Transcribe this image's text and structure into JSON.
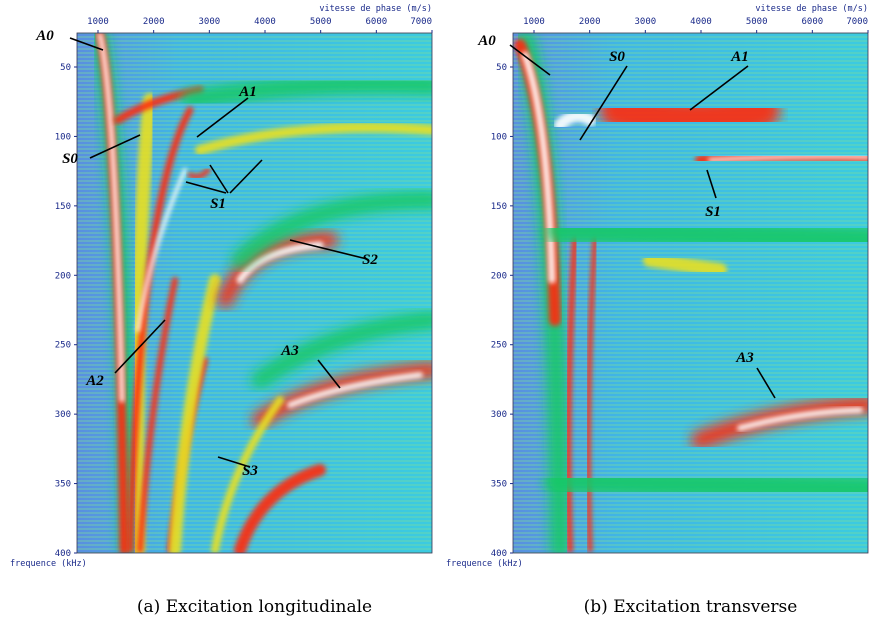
{
  "panels": [
    {
      "x_axis_label": "vitesse de phase (m/s)",
      "y_axis_label": "frequence (kHz)",
      "x_ticks": [
        1000,
        2000,
        3000,
        4000,
        5000,
        6000,
        7000
      ],
      "y_ticks": [
        50,
        100,
        150,
        200,
        250,
        300,
        350,
        400
      ],
      "annotations": [
        "A0",
        "A1",
        "S0",
        "S1",
        "S2",
        "A2",
        "A3",
        "S3"
      ],
      "caption": "(a) Excitation longitudinale"
    },
    {
      "x_axis_label": "vitesse de phase (m/s)",
      "y_axis_label": "frequence (kHz)",
      "x_ticks": [
        1000,
        2000,
        3000,
        4000,
        5000,
        6000,
        7000
      ],
      "y_ticks": [
        50,
        100,
        150,
        200,
        250,
        300,
        350,
        400
      ],
      "annotations": [
        "A0",
        "S0",
        "A1",
        "S1",
        "A3"
      ],
      "caption": "(b) Excitation transverse"
    }
  ]
}
